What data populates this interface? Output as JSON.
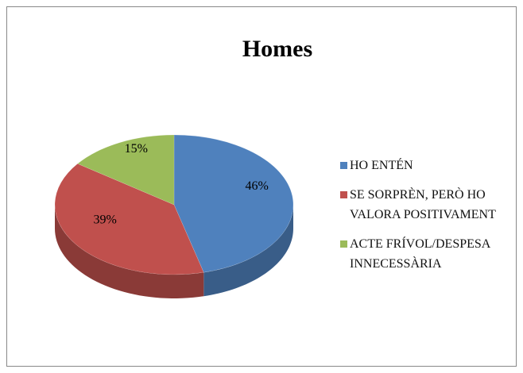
{
  "chart_data": {
    "type": "pie",
    "title": "Homes",
    "categories": [
      "HO ENTÉN",
      "SE SORPRÈN, PERÒ HO VALORA POSITIVAMENT",
      "ACTE FRÍVOL/DESPESA INNECESSÀRIA"
    ],
    "values": [
      46,
      39,
      15
    ],
    "value_labels": [
      "46%",
      "39%",
      "15%"
    ],
    "colors": [
      "#4f81bd",
      "#c0504d",
      "#9bbb59"
    ],
    "legend": "right"
  }
}
